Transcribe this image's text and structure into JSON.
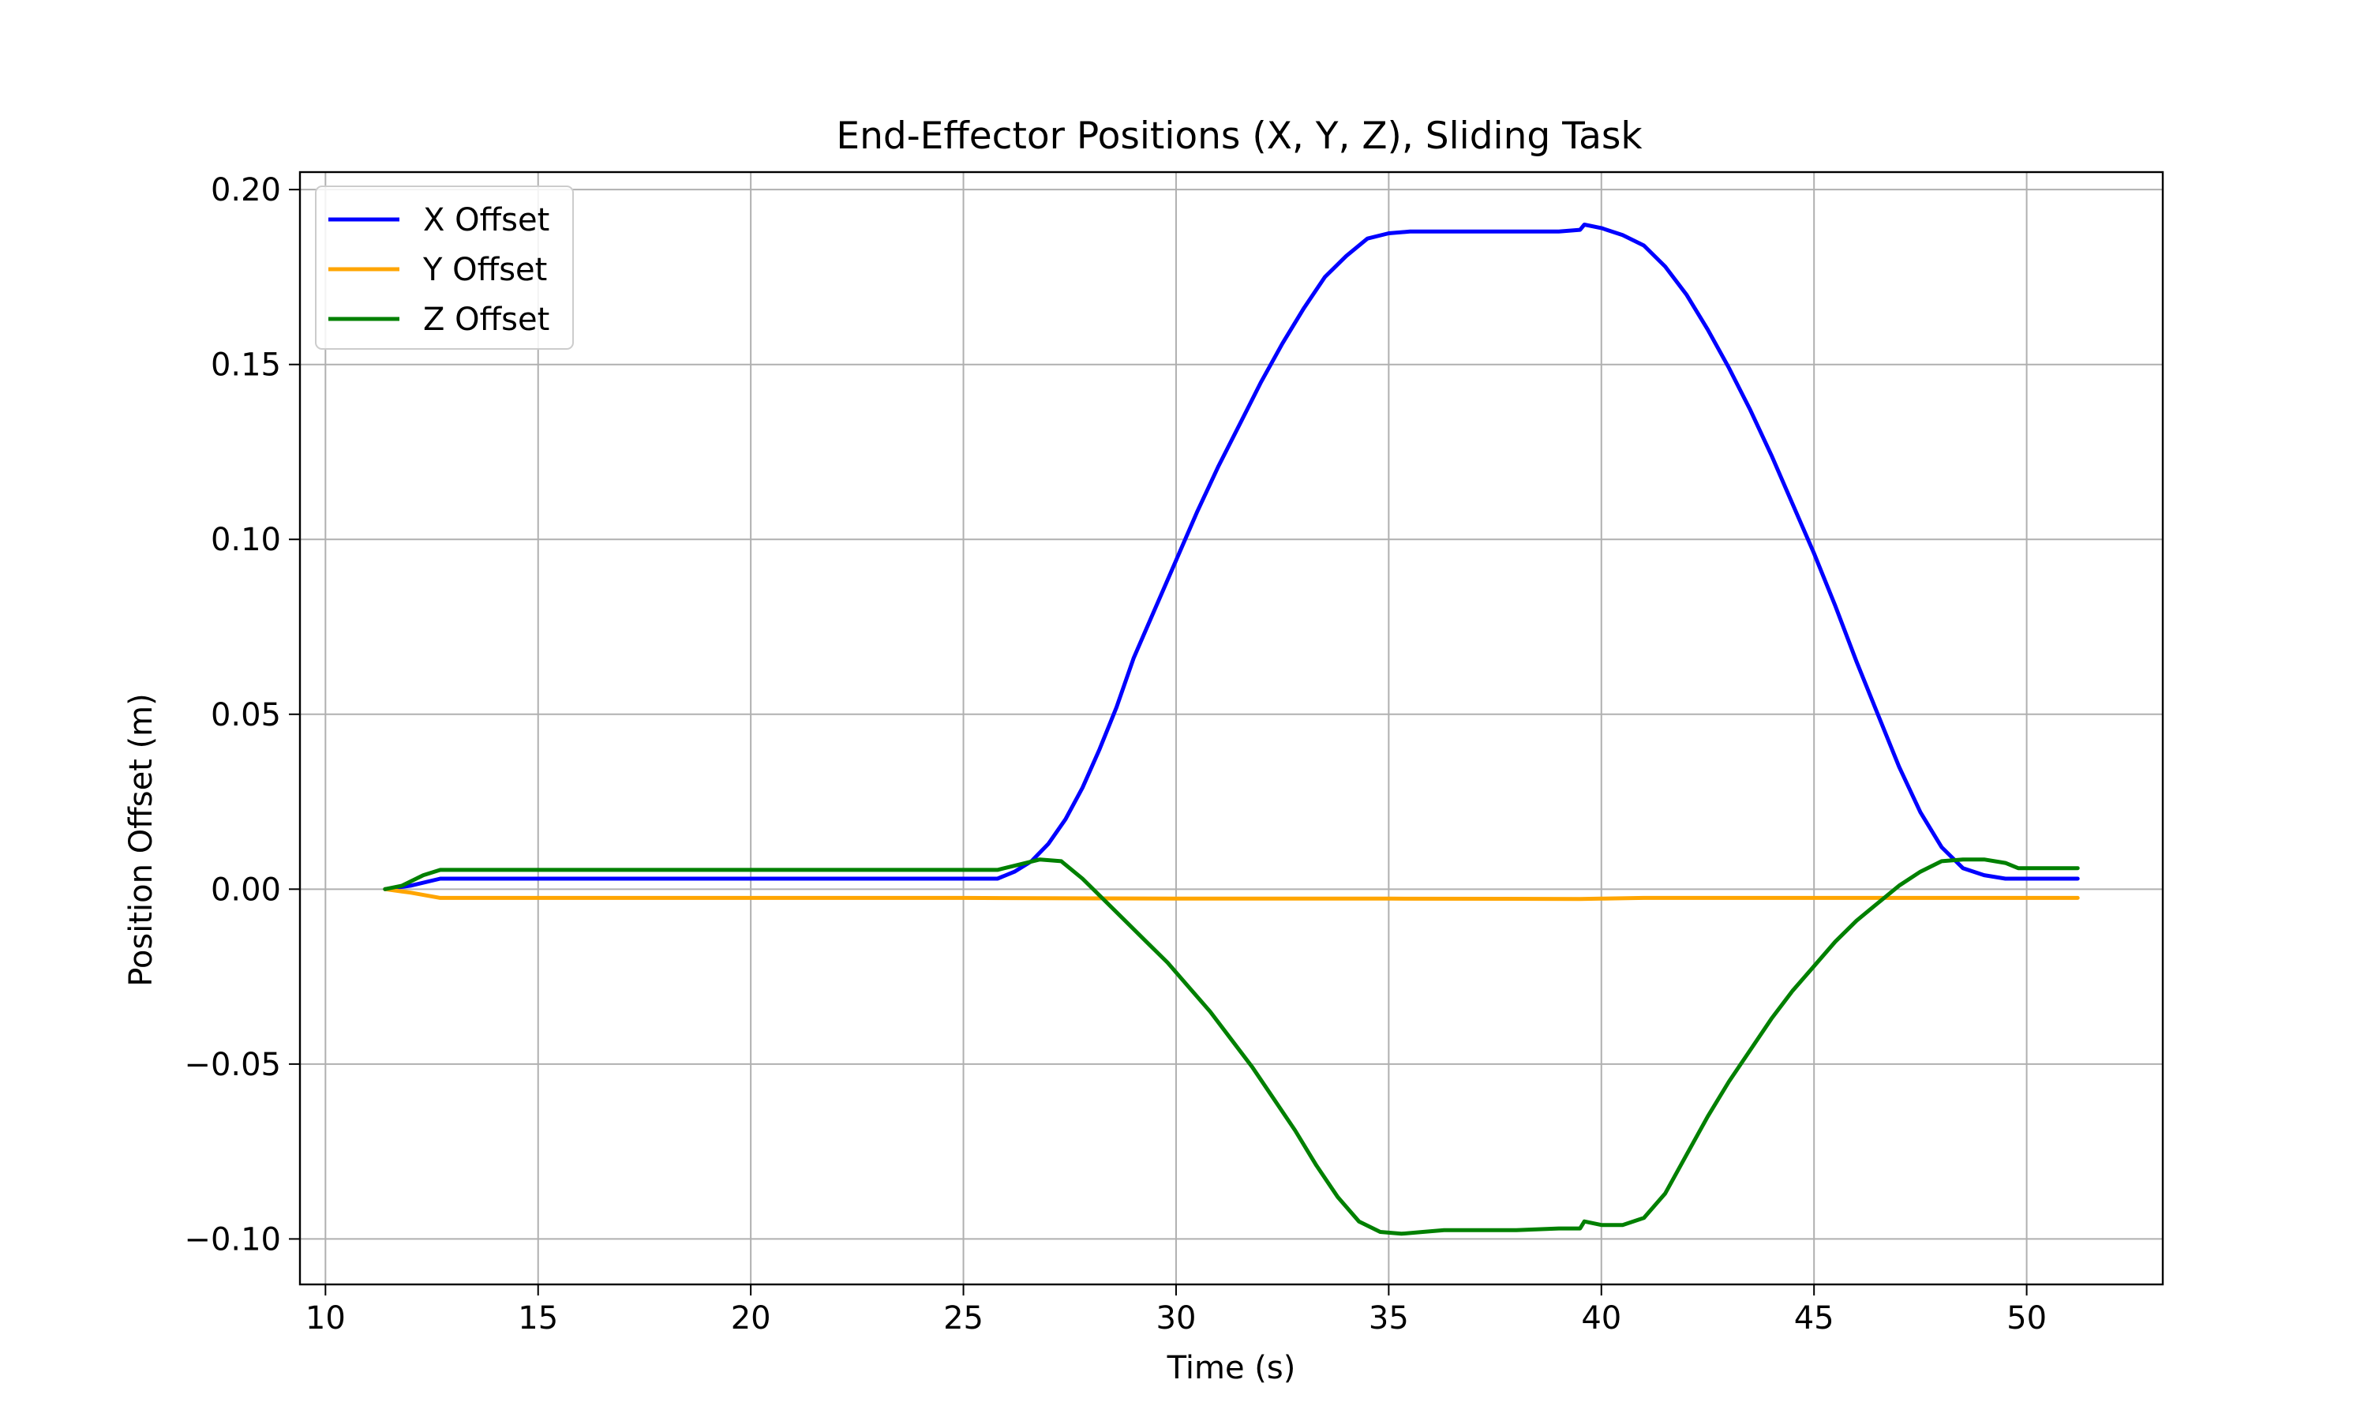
{
  "chart_data": {
    "type": "line",
    "title": "End-Effector Positions (X, Y, Z), Sliding Task",
    "xlabel": "Time (s)",
    "ylabel": "Position Offset (m)",
    "xlim": [
      9.4,
      53.2
    ],
    "ylim": [
      -0.113,
      0.205
    ],
    "xticks": [
      10,
      15,
      20,
      25,
      30,
      35,
      40,
      45,
      50
    ],
    "yticks": [
      -0.1,
      -0.05,
      0.0,
      0.05,
      0.1,
      0.15,
      0.2
    ],
    "xtick_labels": [
      "10",
      "15",
      "20",
      "25",
      "30",
      "35",
      "40",
      "45",
      "50"
    ],
    "ytick_labels": [
      "−0.10",
      "−0.05",
      "0.00",
      "0.05",
      "0.10",
      "0.15",
      "0.20"
    ],
    "grid": true,
    "legend_position": "top-left",
    "series": [
      {
        "name": "X Offset",
        "color": "#0000ff",
        "x": [
          11.4,
          12.0,
          12.7,
          13.0,
          20.0,
          25.0,
          25.8,
          26.2,
          26.6,
          27.0,
          27.4,
          27.8,
          28.2,
          28.6,
          29.0,
          29.5,
          30.0,
          30.5,
          31.0,
          31.5,
          32.0,
          32.5,
          33.0,
          33.5,
          34.0,
          34.5,
          35.0,
          35.5,
          36.0,
          37.0,
          38.0,
          39.0,
          39.5,
          39.6,
          40.0,
          40.5,
          41.0,
          41.5,
          42.0,
          42.5,
          43.0,
          43.5,
          44.0,
          44.5,
          45.0,
          45.5,
          46.0,
          46.5,
          47.0,
          47.5,
          48.0,
          48.5,
          49.0,
          49.5,
          50.0,
          50.5,
          51.2
        ],
        "y": [
          0.0,
          0.001,
          0.003,
          0.003,
          0.003,
          0.003,
          0.003,
          0.005,
          0.008,
          0.013,
          0.02,
          0.029,
          0.04,
          0.052,
          0.066,
          0.08,
          0.094,
          0.108,
          0.121,
          0.133,
          0.145,
          0.156,
          0.166,
          0.175,
          0.181,
          0.186,
          0.1875,
          0.188,
          0.188,
          0.188,
          0.188,
          0.188,
          0.1885,
          0.19,
          0.189,
          0.187,
          0.184,
          0.178,
          0.17,
          0.16,
          0.149,
          0.137,
          0.124,
          0.11,
          0.096,
          0.081,
          0.065,
          0.05,
          0.035,
          0.022,
          0.012,
          0.006,
          0.004,
          0.003,
          0.003,
          0.003,
          0.003
        ]
      },
      {
        "name": "Y Offset",
        "color": "#ffa500",
        "x": [
          11.4,
          12.0,
          12.7,
          15.0,
          20.0,
          25.0,
          30.0,
          35.0,
          39.5,
          40.0,
          41.0,
          45.0,
          50.0,
          51.2
        ],
        "y": [
          0.0,
          -0.001,
          -0.0025,
          -0.0025,
          -0.0025,
          -0.0025,
          -0.0027,
          -0.0027,
          -0.0028,
          -0.0027,
          -0.0025,
          -0.0025,
          -0.0025,
          -0.0025
        ]
      },
      {
        "name": "Z Offset",
        "color": "#008000",
        "x": [
          11.4,
          11.8,
          12.3,
          12.7,
          13.0,
          20.0,
          25.0,
          25.8,
          26.3,
          26.8,
          27.3,
          27.8,
          28.3,
          28.8,
          29.3,
          29.8,
          30.3,
          30.8,
          31.3,
          31.8,
          32.3,
          32.8,
          33.3,
          33.8,
          34.3,
          34.8,
          35.3,
          35.8,
          36.3,
          37.0,
          38.0,
          39.0,
          39.5,
          39.6,
          40.0,
          40.5,
          41.0,
          41.5,
          42.0,
          42.5,
          43.0,
          43.5,
          44.0,
          44.5,
          45.0,
          45.5,
          46.0,
          46.5,
          47.0,
          47.5,
          48.0,
          48.5,
          49.0,
          49.5,
          49.8,
          50.3,
          51.2
        ],
        "y": [
          0.0,
          0.001,
          0.004,
          0.0055,
          0.0055,
          0.0055,
          0.0055,
          0.0055,
          0.007,
          0.0085,
          0.008,
          0.003,
          -0.003,
          -0.009,
          -0.015,
          -0.021,
          -0.028,
          -0.035,
          -0.043,
          -0.051,
          -0.06,
          -0.069,
          -0.079,
          -0.088,
          -0.095,
          -0.098,
          -0.0985,
          -0.098,
          -0.0975,
          -0.0975,
          -0.0975,
          -0.097,
          -0.097,
          -0.095,
          -0.096,
          -0.096,
          -0.094,
          -0.087,
          -0.076,
          -0.065,
          -0.055,
          -0.046,
          -0.037,
          -0.029,
          -0.022,
          -0.015,
          -0.009,
          -0.004,
          0.001,
          0.005,
          0.008,
          0.0085,
          0.0085,
          0.0075,
          0.006,
          0.006,
          0.006
        ]
      }
    ]
  }
}
